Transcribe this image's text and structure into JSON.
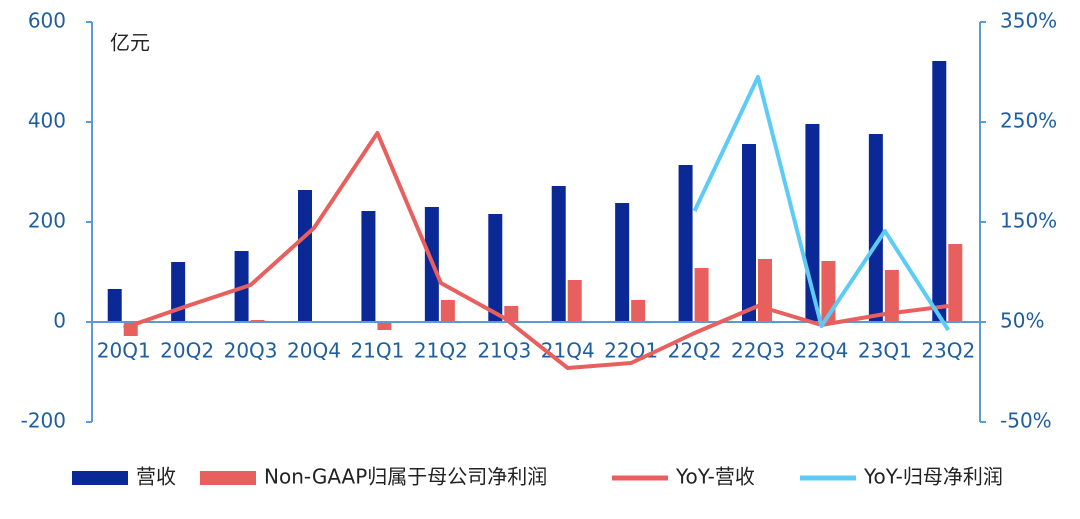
{
  "chart_data": {
    "type": "bar",
    "unit_label": "亿元",
    "categories": [
      "20Q1",
      "20Q2",
      "20Q3",
      "20Q4",
      "21Q1",
      "21Q2",
      "21Q3",
      "21Q4",
      "22Q1",
      "22Q2",
      "22Q3",
      "22Q4",
      "23Q1",
      "23Q2"
    ],
    "series": [
      {
        "name": "营收",
        "color": "#0a2896",
        "values": [
          66,
          120,
          142,
          264,
          222,
          230,
          216,
          272,
          238,
          314,
          356,
          396,
          376,
          522
        ]
      },
      {
        "name": "Non-GAAP归属于母公司净利润",
        "color": "#e8605e",
        "values": [
          -28,
          0,
          4,
          0,
          -16,
          44,
          32,
          84,
          44,
          108,
          126,
          122,
          104,
          156
        ]
      },
      {
        "name": "YoY-营收",
        "type": "line",
        "axis": "y2",
        "color": "#e8605e",
        "values": [
          44,
          66,
          87,
          144,
          239,
          89,
          54,
          4,
          9,
          39,
          66,
          47,
          58,
          66
        ]
      },
      {
        "name": "YoY-归母净利润",
        "type": "line",
        "axis": "y2",
        "color": "#5ccbf5",
        "values": [
          null,
          null,
          null,
          null,
          null,
          null,
          null,
          null,
          null,
          161,
          295,
          46,
          141,
          42
        ]
      }
    ],
    "ylim": [
      -200,
      600
    ],
    "yticks": [
      -200,
      0,
      200,
      400,
      600
    ],
    "y2lim": [
      -50,
      350
    ],
    "y2ticks": [
      {
        "value": -50,
        "label": "-50%"
      },
      {
        "value": 50,
        "label": "50%"
      },
      {
        "value": 150,
        "label": "150%"
      },
      {
        "value": 250,
        "label": "250%"
      },
      {
        "value": 350,
        "label": "350%"
      }
    ],
    "legend": "bottom"
  }
}
